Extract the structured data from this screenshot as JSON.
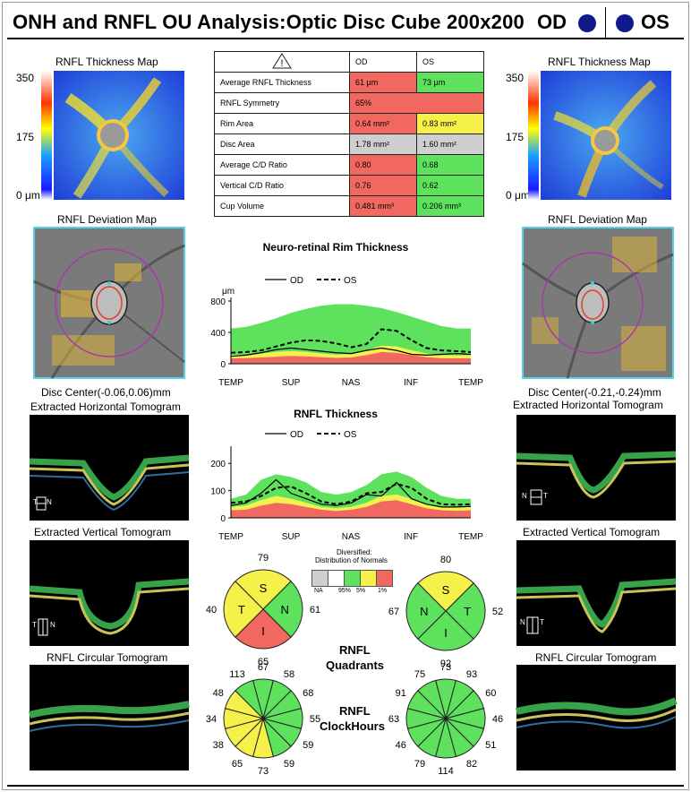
{
  "header": {
    "title": "ONH and RNFL OU Analysis:Optic Disc Cube 200x200",
    "od": "OD",
    "os": "OS"
  },
  "colors": {
    "eye_dot": "#111a8c",
    "red": "#f0685f",
    "green": "#5ee25e",
    "yellow": "#f6f04a",
    "gray": "#cfcfcf"
  },
  "icons": {
    "warning": "warning-triangle-icon"
  },
  "left": {
    "thickness_map_title": "RNFL Thickness Map",
    "scale_max": "350",
    "scale_mid": "175",
    "scale_min": "0 μm",
    "deviation_map_title": "RNFL Deviation Map",
    "disc_center": "Disc Center(-0.06,0.06)mm",
    "horizontal_title": "Extracted Horizontal Tomogram",
    "vertical_title": "Extracted Vertical Tomogram",
    "circular_title": "RNFL Circular Tomogram",
    "h_marker_left": "T",
    "h_marker_right": "N",
    "v_marker_left": "T",
    "v_marker_right": "N"
  },
  "right": {
    "thickness_map_title": "RNFL Thickness Map",
    "scale_max": "350",
    "scale_mid": "175",
    "scale_min": "0 μm",
    "deviation_map_title": "RNFL Deviation Map",
    "disc_center": "Disc Center(-0.21,-0.24)mm",
    "horizontal_title": "Extracted Horizontal Tomogram",
    "vertical_title": "Extracted Vertical Tomogram",
    "circular_title": "RNFL Circular Tomogram",
    "h_marker_left": "N",
    "h_marker_right": "T",
    "v_marker_left": "N",
    "v_marker_right": "T"
  },
  "table": {
    "col_od": "OD",
    "col_os": "OS",
    "rows": [
      {
        "label": "Average RNFL Thickness",
        "od": "61 μm",
        "os": "73 μm",
        "od_color": "red",
        "os_color": "green"
      },
      {
        "label": "RNFL Symmetry",
        "value": "65%",
        "color": "red"
      },
      {
        "label": "Rim Area",
        "od": "0.64 mm²",
        "os": "0.83 mm²",
        "od_color": "red",
        "os_color": "yellow"
      },
      {
        "label": "Disc Area",
        "od": "1.78 mm²",
        "os": "1.60 mm²",
        "od_color": "gray",
        "os_color": "gray"
      },
      {
        "label": "Average C/D Ratio",
        "od": "0.80",
        "os": "0.68",
        "od_color": "red",
        "os_color": "green"
      },
      {
        "label": "Vertical C/D Ratio",
        "od": "0.76",
        "os": "0.62",
        "od_color": "red",
        "os_color": "green"
      },
      {
        "label": "Cup Volume",
        "od": "0.481 mm³",
        "os": "0.206 mm³",
        "od_color": "red",
        "os_color": "green"
      }
    ]
  },
  "chart_data": [
    {
      "type": "line",
      "title": "Neuro-retinal Rim Thickness",
      "ylabel": "μm",
      "ylim": [
        0,
        800
      ],
      "yticks": [
        "800",
        "400",
        "0"
      ],
      "xticks": [
        "TEMP",
        "SUP",
        "NAS",
        "INF",
        "TEMP"
      ],
      "legend": [
        "OD",
        "OS"
      ],
      "x": [
        0,
        16,
        32,
        48,
        64,
        80,
        96,
        112,
        128,
        144,
        160,
        176,
        192,
        208,
        224,
        240,
        255
      ],
      "normal_upper": [
        450,
        470,
        520,
        580,
        650,
        700,
        740,
        760,
        760,
        740,
        710,
        660,
        600,
        540,
        480,
        450,
        450
      ],
      "normal_p5": [
        110,
        115,
        130,
        150,
        160,
        150,
        130,
        115,
        120,
        170,
        230,
        220,
        170,
        130,
        110,
        105,
        110
      ],
      "normal_p1": [
        70,
        72,
        80,
        90,
        100,
        95,
        85,
        75,
        80,
        110,
        150,
        140,
        110,
        85,
        70,
        68,
        70
      ],
      "series": [
        {
          "name": "OD",
          "values": [
            95,
            110,
            140,
            180,
            200,
            180,
            160,
            140,
            130,
            170,
            200,
            170,
            120,
            110,
            120,
            130,
            120
          ]
        },
        {
          "name": "OS",
          "values": [
            140,
            150,
            170,
            220,
            270,
            300,
            290,
            260,
            210,
            250,
            440,
            420,
            300,
            200,
            170,
            160,
            150
          ]
        }
      ]
    },
    {
      "type": "line",
      "title": "RNFL Thickness",
      "ylim": [
        0,
        250
      ],
      "yticks": [
        "200",
        "100",
        "0"
      ],
      "xticks": [
        "TEMP",
        "SUP",
        "NAS",
        "INF",
        "TEMP"
      ],
      "legend": [
        "OD",
        "OS"
      ],
      "x": [
        0,
        16,
        32,
        48,
        64,
        80,
        96,
        112,
        128,
        144,
        160,
        176,
        192,
        208,
        224,
        240,
        255
      ],
      "normal_upper": [
        70,
        85,
        140,
        160,
        150,
        130,
        95,
        85,
        95,
        120,
        160,
        170,
        150,
        110,
        80,
        70,
        70
      ],
      "normal_p5": [
        40,
        45,
        65,
        80,
        70,
        55,
        40,
        35,
        40,
        55,
        80,
        85,
        70,
        50,
        40,
        38,
        40
      ],
      "normal_p1": [
        28,
        30,
        45,
        55,
        50,
        40,
        30,
        25,
        30,
        40,
        60,
        65,
        50,
        35,
        28,
        26,
        28
      ],
      "series": [
        {
          "name": "OD",
          "values": [
            45,
            55,
            90,
            140,
            90,
            70,
            50,
            45,
            55,
            85,
            80,
            130,
            70,
            50,
            40,
            40,
            42
          ]
        },
        {
          "name": "OS",
          "values": [
            55,
            60,
            80,
            110,
            115,
            90,
            60,
            50,
            60,
            90,
            95,
            125,
            110,
            70,
            50,
            48,
            50
          ]
        }
      ]
    },
    {
      "type": "pie",
      "title": "RNFL Quadrants",
      "eye": "OD",
      "categories": [
        "S",
        "N",
        "I",
        "T"
      ],
      "values": [
        79,
        61,
        65,
        40
      ],
      "colors": [
        "yellow",
        "green",
        "red",
        "yellow"
      ]
    },
    {
      "type": "pie",
      "title": "RNFL Quadrants",
      "eye": "OS",
      "categories": [
        "S",
        "T",
        "I",
        "N"
      ],
      "values": [
        80,
        52,
        92,
        67
      ],
      "colors": [
        "yellow",
        "green",
        "green",
        "green"
      ]
    },
    {
      "type": "pie",
      "title": "RNFL ClockHours",
      "eye": "OD",
      "values": [
        67,
        58,
        68,
        55,
        59,
        59,
        73,
        65,
        38,
        34,
        48,
        113
      ],
      "colors": [
        "green",
        "green",
        "green",
        "green",
        "green",
        "green",
        "yellow",
        "yellow",
        "yellow",
        "yellow",
        "yellow",
        "green"
      ]
    },
    {
      "type": "pie",
      "title": "RNFL ClockHours",
      "eye": "OS",
      "values": [
        73,
        93,
        60,
        46,
        51,
        82,
        114,
        79,
        46,
        63,
        91,
        75
      ],
      "colors": [
        "green",
        "green",
        "green",
        "green",
        "green",
        "green",
        "green",
        "green",
        "green",
        "green",
        "green",
        "green"
      ]
    }
  ],
  "legend_normals": {
    "title1": "Diversified:",
    "title2": "Distribution of Normals",
    "labels": [
      "NA",
      "95%",
      "5%",
      "1%"
    ]
  },
  "quadrants_title1": "RNFL",
  "quadrants_title2": "Quadrants",
  "clockhours_title1": "RNFL",
  "clockhours_title2": "ClockHours"
}
